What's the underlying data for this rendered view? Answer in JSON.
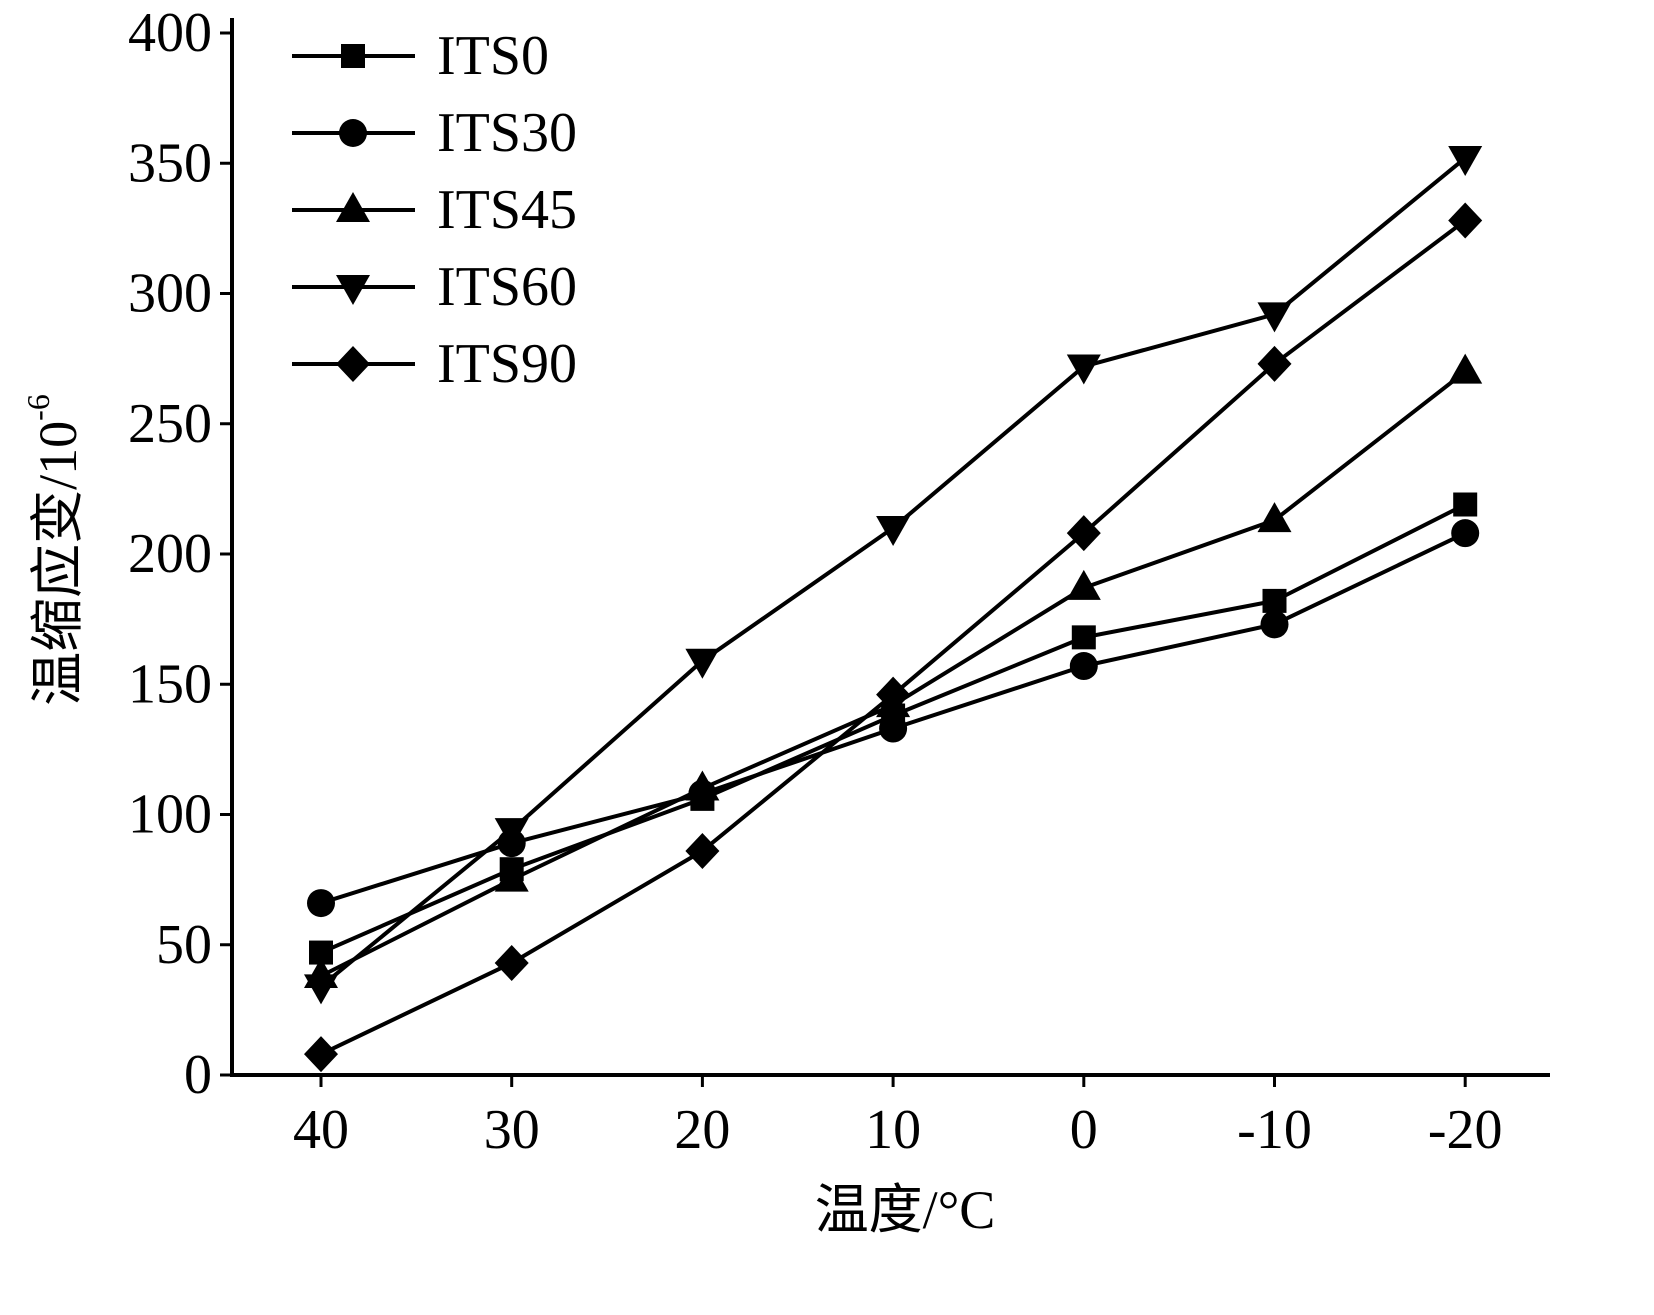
{
  "chart_data": {
    "type": "line",
    "xlabel": "温度/°C",
    "ylabel": "温缩应变/10",
    "ylabel_superscript": "-6",
    "categories": [
      "40",
      "30",
      "20",
      "10",
      "0",
      "-10",
      "-20"
    ],
    "ylim": [
      0,
      400
    ],
    "yticks": [
      0,
      50,
      100,
      150,
      200,
      250,
      300,
      350,
      400
    ],
    "grid": false,
    "legend_position": "top-left",
    "line_color": "#000000",
    "series": [
      {
        "name": "ITS0",
        "marker": "square",
        "values": [
          47,
          79,
          106,
          138,
          168,
          182,
          219
        ]
      },
      {
        "name": "ITS30",
        "marker": "circle",
        "values": [
          66,
          89,
          108,
          133,
          157,
          173,
          208
        ]
      },
      {
        "name": "ITS45",
        "marker": "triangle-up",
        "values": [
          38,
          75,
          110,
          142,
          187,
          213,
          270
        ]
      },
      {
        "name": "ITS60",
        "marker": "triangle-down",
        "values": [
          34,
          94,
          159,
          210,
          272,
          292,
          352
        ]
      },
      {
        "name": "ITS90",
        "marker": "diamond",
        "values": [
          8,
          43,
          86,
          146,
          208,
          273,
          328
        ]
      }
    ]
  }
}
